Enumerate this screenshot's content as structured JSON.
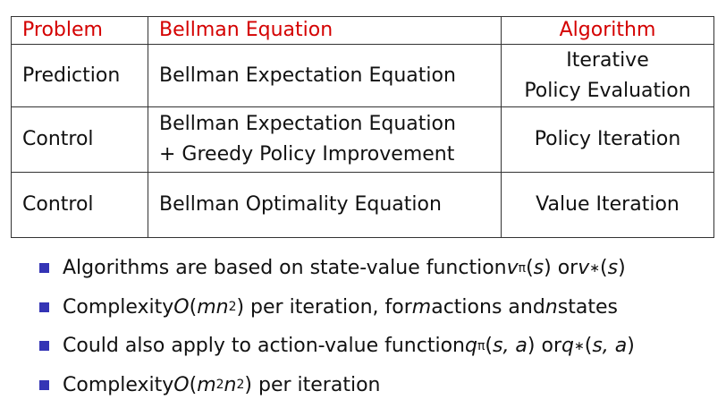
{
  "table": {
    "header": [
      "Problem",
      "Bellman Equation",
      "Algorithm"
    ],
    "rows": [
      [
        [
          "Prediction"
        ],
        [
          "Bellman Expectation Equation"
        ],
        [
          "Iterative",
          "Policy Evaluation"
        ]
      ],
      [
        [
          "Control"
        ],
        [
          "Bellman Expectation Equation",
          "+ Greedy Policy Improvement"
        ],
        [
          "Policy Iteration"
        ]
      ],
      [
        [
          "Control"
        ],
        [
          "Bellman Optimality Equation"
        ],
        [
          "Value Iteration"
        ]
      ]
    ]
  },
  "bullets": [
    [
      "Algorithms are based on state-value function ",
      "v",
      "π",
      "(",
      "s",
      ") or ",
      "v",
      "∗",
      "(",
      "s",
      ")"
    ],
    [
      "Complexity ",
      "O",
      "(",
      "mn",
      "2",
      ") per iteration, for ",
      "m",
      " actions and ",
      "n",
      " states"
    ],
    [
      "Could also apply to action-value function ",
      "q",
      "π",
      "(",
      "s, a",
      ") or ",
      "q",
      "∗",
      "(",
      "s, a",
      ")"
    ],
    [
      "Complexity ",
      "O",
      "(",
      "m",
      "2",
      "n",
      "2",
      ") per iteration"
    ]
  ]
}
